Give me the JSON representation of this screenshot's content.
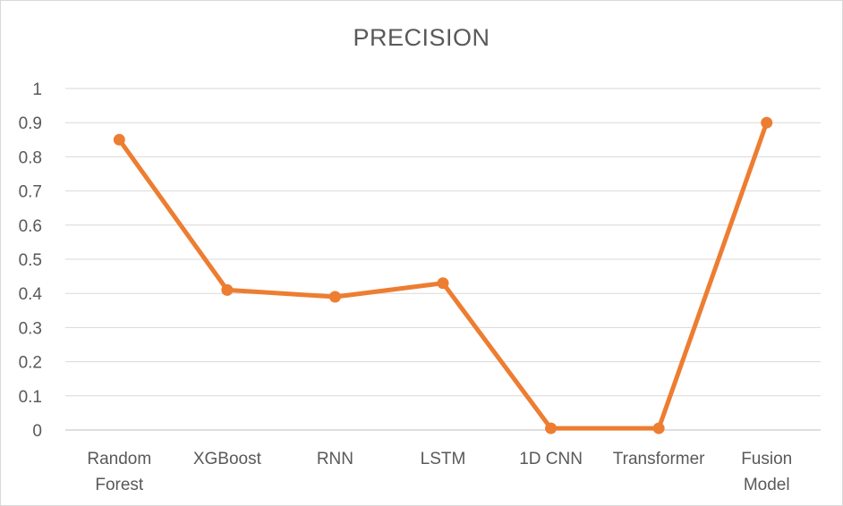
{
  "chart_data": {
    "type": "line",
    "title": "PRECISION",
    "categories": [
      [
        "Random",
        "Forest"
      ],
      [
        "XGBoost"
      ],
      [
        "RNN"
      ],
      [
        "LSTM"
      ],
      [
        "1D CNN"
      ],
      [
        "Transformer"
      ],
      [
        "Fusion",
        "Model"
      ]
    ],
    "series": [
      {
        "values": [
          0.85,
          0.41,
          0.39,
          0.43,
          0.005,
          0.005,
          0.9
        ],
        "color": "#ED7D31"
      }
    ],
    "ylim": [
      0,
      1
    ],
    "yticks": [
      "0",
      "0.1",
      "0.2",
      "0.3",
      "0.4",
      "0.5",
      "0.6",
      "0.7",
      "0.8",
      "0.9",
      "1"
    ],
    "grid": true,
    "legend": "none",
    "xlabel": "",
    "ylabel": ""
  }
}
